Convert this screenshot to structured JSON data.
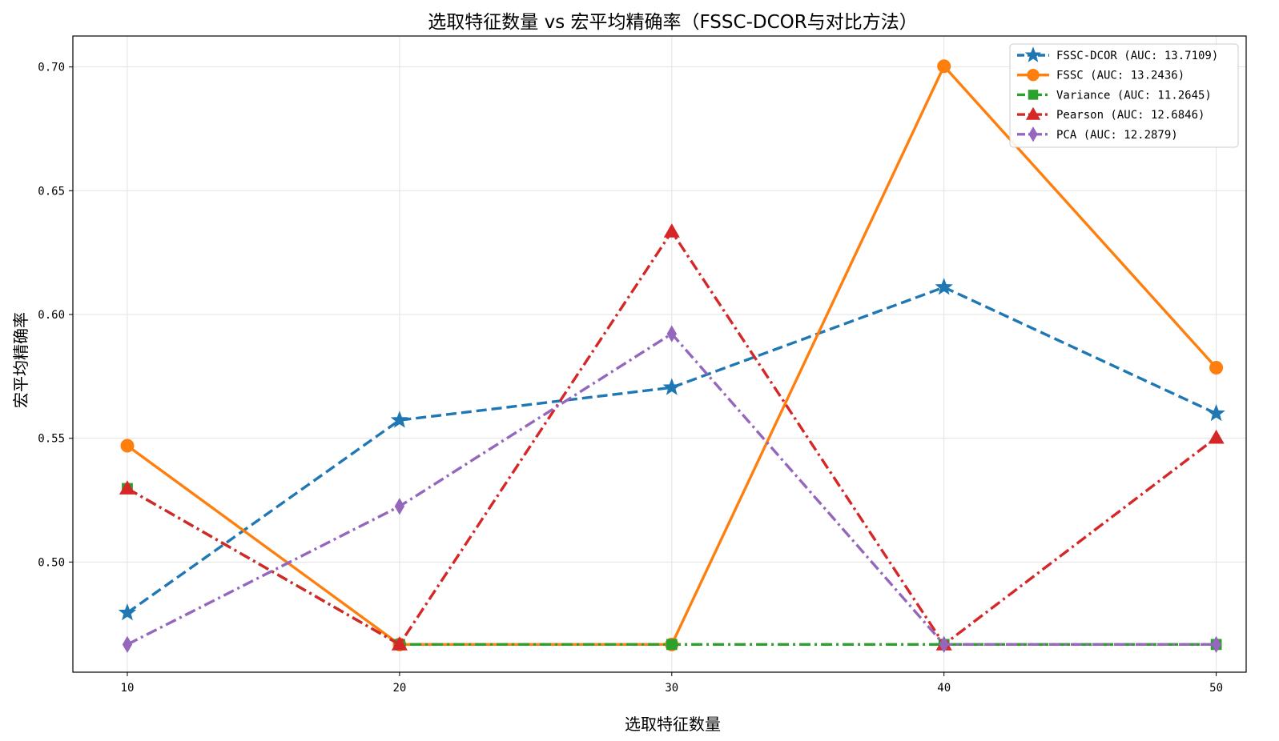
{
  "chart_data": {
    "type": "line",
    "title": "选取特征数量 vs 宏平均精确率（FSSC-DCOR与对比方法）",
    "xlabel": "选取特征数量",
    "ylabel": "宏平均精确率",
    "x": [
      10,
      20,
      30,
      40,
      50
    ],
    "x_ticks": [
      10,
      20,
      30,
      40,
      50
    ],
    "y_ticks": [
      0.5,
      0.55,
      0.6,
      0.65,
      0.7
    ],
    "y_tick_labels": [
      "0.50",
      "0.55",
      "0.60",
      "0.65",
      "0.70"
    ],
    "xlim": [
      8,
      51.1
    ],
    "ylim": [
      0.4555,
      0.7125
    ],
    "grid": true,
    "legend_position": "top-right",
    "series": [
      {
        "name": "FSSC-DCOR (AUC: 13.7109)",
        "values": [
          0.4795,
          0.5573,
          0.5705,
          0.611,
          0.56
        ],
        "color": "#1f77b4",
        "line_style": "dashed",
        "marker": "star"
      },
      {
        "name": "FSSC (AUC: 13.2436)",
        "values": [
          0.547,
          0.4667,
          0.4667,
          0.7003,
          0.5785
        ],
        "color": "#ff7f0e",
        "line_style": "solid",
        "marker": "circle"
      },
      {
        "name": "Variance (AUC: 11.2645)",
        "values": [
          0.5297,
          0.4667,
          0.4667,
          0.4667,
          0.4667
        ],
        "color": "#2ca02c",
        "line_style": "dashdot",
        "marker": "square"
      },
      {
        "name": "Pearson (AUC: 12.6846)",
        "values": [
          0.5297,
          0.4667,
          0.6335,
          0.4667,
          0.5502
        ],
        "color": "#d62728",
        "line_style": "dashdot",
        "marker": "triangle"
      },
      {
        "name": "PCA (AUC: 12.2879)",
        "values": [
          0.4667,
          0.5225,
          0.5922,
          0.4667,
          0.4667
        ],
        "color": "#9467bd",
        "line_style": "dashdot",
        "marker": "diamond"
      }
    ]
  }
}
